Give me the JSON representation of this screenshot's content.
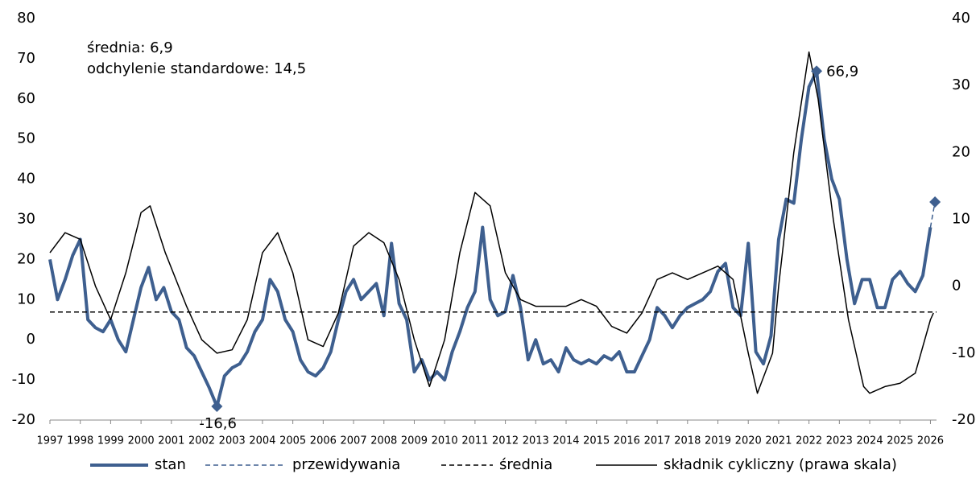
{
  "chart_data": {
    "type": "line",
    "xlim": [
      1997,
      2026.2
    ],
    "xticks": [
      1997,
      1998,
      1999,
      2000,
      2001,
      2002,
      2003,
      2004,
      2005,
      2006,
      2007,
      2008,
      2009,
      2010,
      2011,
      2012,
      2013,
      2014,
      2015,
      2016,
      2017,
      2018,
      2019,
      2020,
      2021,
      2022,
      2023,
      2024,
      2025,
      2026
    ],
    "ylim": [
      -20,
      80
    ],
    "yticks": [
      -20,
      -10,
      0,
      10,
      20,
      30,
      40,
      50,
      60,
      70,
      80
    ],
    "y2lim": [
      -20,
      40
    ],
    "y2ticks": [
      -20,
      -10,
      0,
      10,
      20,
      30,
      40
    ],
    "grid": false,
    "series": [
      {
        "name": "stan",
        "color": "#3e5f8f",
        "width": 4,
        "dash": "solid",
        "x": [
          1997,
          1997.25,
          1997.5,
          1997.75,
          1998,
          1998.25,
          1998.5,
          1998.75,
          1999,
          1999.25,
          1999.5,
          1999.75,
          2000,
          2000.25,
          2000.5,
          2000.75,
          2001,
          2001.25,
          2001.5,
          2001.75,
          2002,
          2002.25,
          2002.5,
          2002.75,
          2003,
          2003.25,
          2003.5,
          2003.75,
          2004,
          2004.25,
          2004.5,
          2004.75,
          2005,
          2005.25,
          2005.5,
          2005.75,
          2006,
          2006.25,
          2006.5,
          2006.75,
          2007,
          2007.25,
          2007.5,
          2007.75,
          2008,
          2008.25,
          2008.5,
          2008.75,
          2009,
          2009.25,
          2009.5,
          2009.75,
          2010,
          2010.25,
          2010.5,
          2010.75,
          2011,
          2011.25,
          2011.5,
          2011.75,
          2012,
          2012.25,
          2012.5,
          2012.75,
          2013,
          2013.25,
          2013.5,
          2013.75,
          2014,
          2014.25,
          2014.5,
          2014.75,
          2015,
          2015.25,
          2015.5,
          2015.75,
          2016,
          2016.25,
          2016.5,
          2016.75,
          2017,
          2017.25,
          2017.5,
          2017.75,
          2018,
          2018.25,
          2018.5,
          2018.75,
          2019,
          2019.25,
          2019.5,
          2019.75,
          2020,
          2020.25,
          2020.5,
          2020.75,
          2021,
          2021.25,
          2021.5,
          2021.75,
          2022,
          2022.25,
          2022.5,
          2022.75,
          2023,
          2023.25,
          2023.5,
          2023.75,
          2024,
          2024.25,
          2024.5,
          2024.75,
          2025,
          2025.25,
          2025.5,
          2025.75,
          2026
        ],
        "values": [
          20,
          10,
          15,
          21,
          25,
          5,
          3,
          2,
          5,
          0,
          -3,
          5,
          13,
          18,
          10,
          13,
          7,
          5,
          -2,
          -4,
          -8,
          -12,
          -16.6,
          -9,
          -7,
          -6,
          -3,
          2,
          5,
          15,
          12,
          5,
          2,
          -5,
          -8,
          -9,
          -7,
          -3,
          5,
          12,
          15,
          10,
          12,
          14,
          6,
          24,
          9,
          5,
          -8,
          -5,
          -10,
          -8,
          -10,
          -3,
          2,
          8,
          12,
          28,
          10,
          6,
          7,
          16,
          8,
          -5,
          0,
          -6,
          -5,
          -8,
          -2,
          -5,
          -6,
          -5,
          -6,
          -4,
          -5,
          -3,
          -8,
          -8,
          -4,
          0,
          8,
          6,
          3,
          6,
          8,
          9,
          10,
          12,
          17,
          19,
          8,
          6,
          24,
          -3,
          -6,
          1,
          25,
          35,
          34,
          50,
          63,
          66.9,
          50,
          40,
          35,
          20,
          9,
          15,
          15,
          8,
          8,
          15,
          17,
          14,
          12,
          16,
          28
        ]
      },
      {
        "name": "przewidywania",
        "color": "#3e5f8f",
        "width": 1.5,
        "dash": "dashed",
        "marker_last": true,
        "x": [
          2026,
          2026.15
        ],
        "values": [
          28,
          34.3
        ]
      },
      {
        "name": "średnia",
        "color": "#000000",
        "width": 1.5,
        "dash": "dashed",
        "x": [
          1997,
          2026.2
        ],
        "values": [
          6.9,
          6.9
        ]
      },
      {
        "name": "składnik cykliczny (prawa skala)",
        "color": "#000000",
        "width": 1.5,
        "dash": "solid",
        "axis": "y2",
        "x": [
          1997,
          1997.5,
          1998,
          1998.5,
          1999,
          1999.5,
          2000,
          2000.3,
          2000.8,
          2001.5,
          2002,
          2002.5,
          2003,
          2003.5,
          2004,
          2004.5,
          2005,
          2005.5,
          2006,
          2006.5,
          2007,
          2007.5,
          2008,
          2008.5,
          2009,
          2009.5,
          2010,
          2010.5,
          2011,
          2011.5,
          2012,
          2012.5,
          2013,
          2013.5,
          2014,
          2014.5,
          2015,
          2015.5,
          2016,
          2016.5,
          2017,
          2017.5,
          2018,
          2018.5,
          2019,
          2019.5,
          2020,
          2020.3,
          2020.8,
          2021,
          2021.5,
          2022,
          2022.3,
          2022.8,
          2023.3,
          2023.8,
          2024,
          2024.5,
          2025,
          2025.5,
          2026,
          2026.1
        ],
        "values": [
          5,
          8,
          7,
          0,
          -5,
          2,
          11,
          12,
          5,
          -3,
          -8,
          -10,
          -9.5,
          -5,
          5,
          8,
          2,
          -8,
          -9,
          -4,
          6,
          8,
          6.5,
          1,
          -8,
          -15,
          -8,
          5,
          14,
          12,
          2,
          -2,
          -3,
          -3,
          -3,
          -2,
          -3,
          -6,
          -7,
          -4,
          1,
          2,
          1,
          2,
          3,
          1,
          -10,
          -16,
          -10,
          0,
          20,
          35,
          28,
          10,
          -5,
          -15,
          -16,
          -15,
          -14.5,
          -13,
          -5,
          -4
        ]
      }
    ],
    "annotations": [
      {
        "text": "-16,6",
        "x": 2002.5,
        "y": -16.6
      },
      {
        "text": "66,9",
        "x": 2022.25,
        "y": 66.9
      }
    ],
    "notes": [
      "średnia: 6,9",
      "odchylenie standardowe: 14,5"
    ]
  }
}
